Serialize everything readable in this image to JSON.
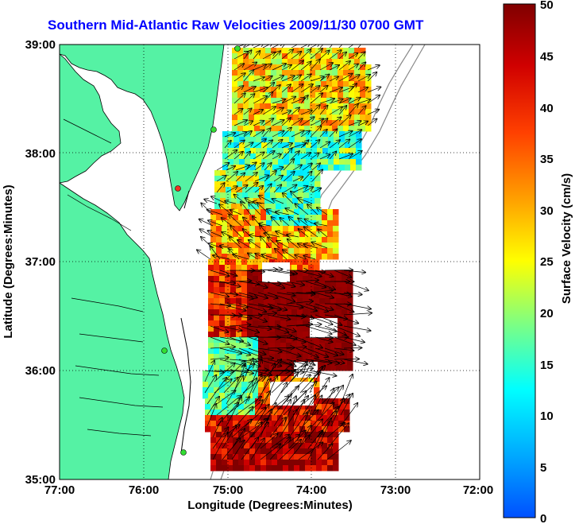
{
  "title": "Southern Mid-Atlantic Raw Velocities 2009/11/30 0700 GMT",
  "x_axis": {
    "label": "Longitude (Degrees:Minutes)",
    "ticks": [
      "77:00",
      "76:00",
      "75:00",
      "74:00",
      "73:00",
      "72:00"
    ]
  },
  "y_axis": {
    "label": "Latitude (Degrees:Minutes)",
    "ticks": [
      "39:00",
      "38:00",
      "37:00",
      "36:00",
      "35:00"
    ]
  },
  "colorbar": {
    "label": "Surface Velocity (cm/s)",
    "ticks": [
      "50",
      "45",
      "40",
      "35",
      "30",
      "25",
      "20",
      "15",
      "10",
      "5",
      "0"
    ],
    "min": 0,
    "max": 50,
    "colormap": "jet"
  },
  "map": {
    "lon_range": [
      -77,
      -72
    ],
    "lat_range": [
      35,
      39
    ],
    "land_color": "#55f2a4",
    "water_color": "#ffffff",
    "gridlines": "dotted"
  },
  "stations": [
    {
      "status": "active",
      "color": "#33dd33"
    },
    {
      "status": "active",
      "color": "#33dd33"
    },
    {
      "status": "inactive",
      "color": "#ee3322"
    },
    {
      "status": "active",
      "color": "#33dd33"
    },
    {
      "status": "active",
      "color": "#33dd33"
    }
  ]
}
